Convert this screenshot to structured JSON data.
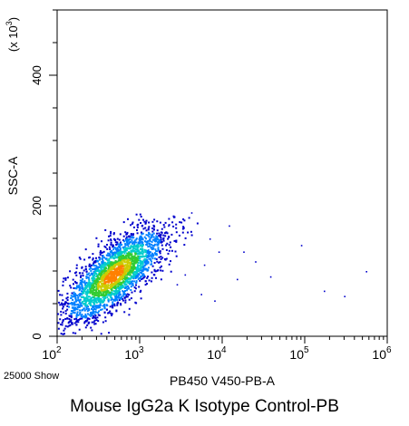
{
  "caption": "Mouse IgG2a K Isotype Control-PB",
  "event_count_label": "25000 Show",
  "chart_data": {
    "type": "scatter",
    "subtype": "flow-cytometry-density-dot-plot",
    "xlabel": "PB450 V450-PB-A",
    "ylabel": "SSC-A",
    "y_multiplier_label": "(x 10",
    "y_multiplier_exp": "3",
    "x_scale": "log",
    "x_range": [
      100,
      1000000
    ],
    "x_ticks": [
      {
        "value": 100,
        "base": "10",
        "exp": "2"
      },
      {
        "value": 1000,
        "base": "10",
        "exp": "3"
      },
      {
        "value": 10000,
        "base": "10",
        "exp": "4"
      },
      {
        "value": 100000,
        "base": "10",
        "exp": "5"
      },
      {
        "value": 1000000,
        "base": "10",
        "exp": "6"
      }
    ],
    "y_scale": "linear",
    "y_range": [
      0,
      500
    ],
    "y_ticks": [
      {
        "value": 0,
        "label": "0"
      },
      {
        "value": 200,
        "label": "200"
      },
      {
        "value": 400,
        "label": "400"
      }
    ],
    "density_colors": [
      "#0000cc",
      "#0080ff",
      "#00cccc",
      "#33cc33",
      "#cccc00",
      "#ff8000"
    ],
    "population": {
      "x_center": 480,
      "y_center": 95,
      "x_spread_log": 0.32,
      "y_spread": 38
    },
    "outlier_points": [
      {
        "x": 2200,
        "y": 170
      },
      {
        "x": 4200,
        "y": 190
      },
      {
        "x": 12000,
        "y": 170
      },
      {
        "x": 9000,
        "y": 130
      },
      {
        "x": 18000,
        "y": 130
      },
      {
        "x": 6000,
        "y": 110
      },
      {
        "x": 3500,
        "y": 95
      },
      {
        "x": 2800,
        "y": 80
      },
      {
        "x": 5500,
        "y": 65
      },
      {
        "x": 8000,
        "y": 55
      },
      {
        "x": 38000,
        "y": 92
      },
      {
        "x": 90000,
        "y": 140
      },
      {
        "x": 170000,
        "y": 70
      },
      {
        "x": 550000,
        "y": 100
      },
      {
        "x": 300000,
        "y": 62
      },
      {
        "x": 15000,
        "y": 88
      },
      {
        "x": 25000,
        "y": 115
      },
      {
        "x": 7000,
        "y": 150
      }
    ]
  }
}
